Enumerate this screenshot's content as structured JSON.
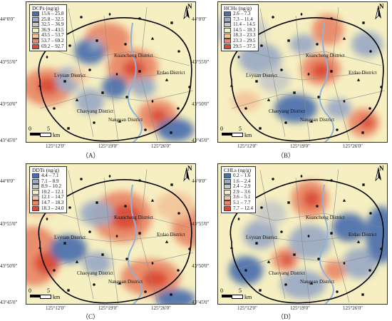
{
  "panels": [
    {
      "id": "A",
      "caption": "（A）",
      "legend_title": "DCPs (ng/g)",
      "legend_items": [
        "15.6 – 25.8",
        "25.8 – 32.5",
        "32.5 – 36.9",
        "36.9 – 43.5",
        "43.5 – 53.7",
        "53.7 – 69.2",
        "69.2 – 92.7"
      ]
    },
    {
      "id": "B",
      "caption": "（B）",
      "legend_title": "HCHs (ng/g)",
      "legend_items": [
        "2.6 – 7.3",
        "7.3 – 11.4",
        "11.4 – 14.5",
        "14.5 – 18.3",
        "18.3 – 23.3",
        "23.3 – 29.5",
        "29.5 – 37.5"
      ]
    },
    {
      "id": "C",
      "caption": "（C）",
      "legend_title": "DDTs (ng/g)",
      "legend_items": [
        "4.4 – 7.1",
        "7.1 – 8.9",
        "8.9 – 10.2",
        "10.2 – 12.1",
        "12.1 – 14.7",
        "14.7 – 18.3",
        "18.3 – 24.0"
      ]
    },
    {
      "id": "D",
      "caption": "（D）",
      "legend_title": "CHLs (ng/g)",
      "legend_items": [
        "0.2 – 1.6",
        "1.6 – 2.4",
        "2.4 – 2.9",
        "2.9 – 3.6",
        "3.6 – 5.1",
        "5.1 – 7.7",
        "7.7 – 12.4"
      ]
    }
  ],
  "legend_colors": [
    "#4a6fae",
    "#9aa9c4",
    "#c7c9c8",
    "#f6efc1",
    "#f3c49a",
    "#e98766",
    "#d94836"
  ],
  "latitudes": [
    "44°0'0\"",
    "43°55'0\"",
    "43°50'0\"",
    "43°45'0\""
  ],
  "longitudes": [
    "125°12'0\"",
    "125°19'0\"",
    "125°26'0\""
  ],
  "districts": {
    "kuancheng": "Kuancheng District",
    "lvyuan": "Lvyuan District",
    "erdao": "Erdao District",
    "chaoyang": "Chaoyang District",
    "nanguan": "Nanguan District"
  },
  "north": "N",
  "scale": {
    "zero": "0",
    "five": "5",
    "unit": "km"
  }
}
